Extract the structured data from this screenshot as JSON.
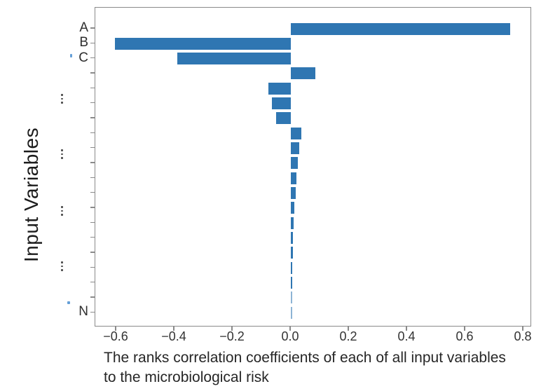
{
  "figure": {
    "ylabel": "Input Variables",
    "caption_line1": "The ranks correlation coefficients of each of all input variables",
    "caption_line2": "to the microbiological risk"
  },
  "chart_data": {
    "type": "bar",
    "orientation": "horizontal",
    "title": "",
    "xlabel": "The ranks correlation coefficients of each of all input variables to the microbiological risk",
    "ylabel": "Input Variables",
    "categories": [
      "A",
      "B",
      "C",
      "",
      "",
      "",
      "",
      "",
      "",
      "",
      "",
      "",
      "",
      "",
      "",
      "",
      "",
      "",
      "",
      "N"
    ],
    "values": [
      0.755,
      -0.605,
      -0.39,
      0.085,
      -0.077,
      -0.065,
      -0.05,
      0.035,
      0.03,
      0.024,
      0.019,
      0.016,
      0.012,
      0.01,
      0.008,
      0.007,
      0.006,
      0.005,
      0.003,
      0.002
    ],
    "x_tick_values": [
      -0.6,
      -0.4,
      -0.2,
      0.0,
      0.2,
      0.4,
      0.6,
      0.8
    ],
    "x_tick_labels": [
      "−0.6",
      "−0.4",
      "−0.2",
      "0.0",
      "0.2",
      "0.4",
      "0.6",
      "0.8"
    ],
    "xlim": [
      -0.672,
      0.829
    ],
    "ellipsis_row_positions": [
      4.8,
      8.5,
      12.3,
      16.0
    ],
    "bar_color": "#2f76b2",
    "axis_color": "#8a8a8a",
    "text_color": "#2e2e2e",
    "grid": false,
    "legend": null
  }
}
